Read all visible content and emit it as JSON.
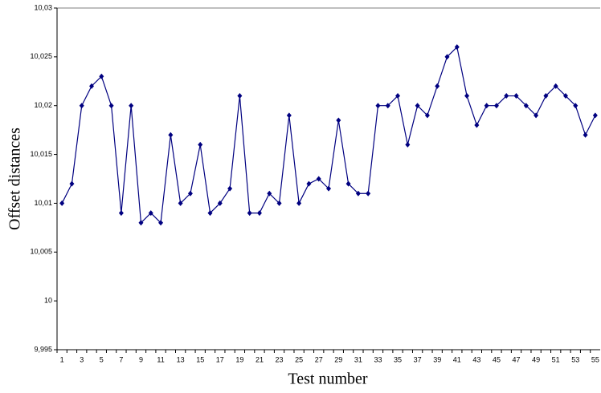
{
  "chart_data": {
    "type": "line",
    "x_label": "Test number",
    "y_label": "Offset distances",
    "categories": [
      "1",
      null,
      "3",
      null,
      "5",
      null,
      "7",
      null,
      "9",
      null,
      "11",
      null,
      "13",
      null,
      "15",
      null,
      "17",
      null,
      "19",
      null,
      "21",
      null,
      "23",
      null,
      "25",
      null,
      "27",
      null,
      "29",
      null,
      "31",
      null,
      "33",
      null,
      "35",
      null,
      "37",
      null,
      "39",
      null,
      "41",
      null,
      "43",
      null,
      "45",
      null,
      "47",
      null,
      "49",
      null,
      "51",
      null,
      "53",
      null,
      "55"
    ],
    "series": [
      {
        "color": "#000080",
        "values": [
          10.01,
          10.012,
          10.02,
          10.022,
          10.023,
          10.02,
          10.009,
          10.02,
          10.008,
          10.009,
          10.008,
          10.017,
          10.01,
          10.011,
          10.016,
          10.009,
          10.01,
          10.0115,
          10.021,
          10.009,
          10.009,
          10.011,
          10.01,
          10.019,
          10.01,
          10.012,
          10.0125,
          10.0115,
          10.0185,
          10.012,
          10.011,
          10.011,
          10.02,
          10.02,
          10.021,
          10.016,
          10.02,
          10.019,
          10.022,
          10.025,
          10.026,
          10.021,
          10.018,
          10.02,
          10.02,
          10.021,
          10.021,
          10.02,
          10.019,
          10.021,
          10.022,
          10.021,
          10.02,
          10.017,
          10.019
        ]
      }
    ],
    "ylim": [
      9.995,
      10.03
    ],
    "yticks": [
      {
        "value": 9.995,
        "label": "9,995"
      },
      10,
      {
        "value": 10.005,
        "label": "10,005"
      },
      {
        "value": 10.01,
        "label": "10,01"
      },
      {
        "value": 10.015,
        "label": "10,015"
      },
      {
        "value": 10.02,
        "label": "10,02"
      },
      {
        "value": 10.025,
        "label": "10,025"
      },
      {
        "value": 10.03,
        "label": "10,03"
      }
    ],
    "grid": false
  }
}
